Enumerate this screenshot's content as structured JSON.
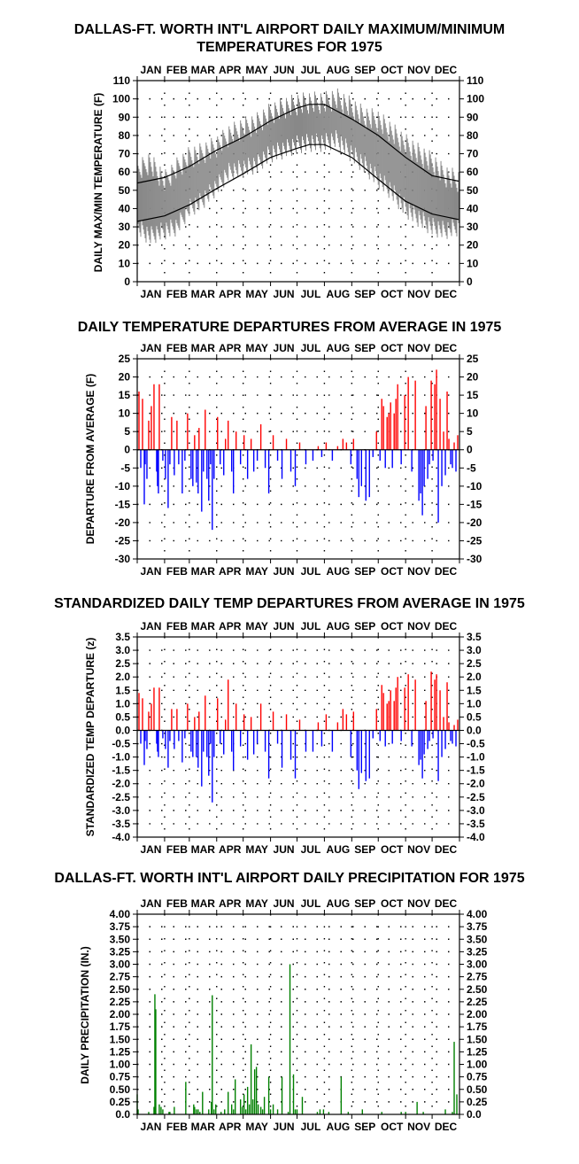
{
  "chart_data": [
    {
      "type": "line",
      "title_line1": "DALLAS-FT. WORTH INT'L AIRPORT DAILY MAXIMUM/MINIMUM",
      "title_line2": "TEMPERATURES FOR 1975",
      "ylabel": "DAILY MAX/MIN TEMPERATURE (F)",
      "xlabel": "",
      "months": [
        "JAN",
        "FEB",
        "MAR",
        "APR",
        "MAY",
        "JUN",
        "JUL",
        "AUG",
        "SEP",
        "OCT",
        "NOV",
        "DEC"
      ],
      "ylim": [
        0,
        110
      ],
      "yticks": [
        0,
        10,
        20,
        30,
        40,
        50,
        60,
        70,
        80,
        90,
        100,
        110
      ],
      "grid": true,
      "series": [
        {
          "role": "observed_range",
          "color": "#888888",
          "days": [
            1,
            15,
            32,
            46,
            60,
            74,
            91,
            105,
            121,
            135,
            152,
            166,
            182,
            196,
            213,
            227,
            244,
            258,
            274,
            288,
            305,
            319,
            335,
            349,
            365
          ],
          "max": [
            60,
            65,
            55,
            62,
            68,
            70,
            74,
            80,
            84,
            86,
            92,
            95,
            97,
            98,
            98,
            100,
            95,
            90,
            88,
            82,
            75,
            70,
            65,
            58,
            55
          ],
          "min": [
            30,
            25,
            28,
            30,
            40,
            44,
            52,
            60,
            62,
            64,
            70,
            72,
            75,
            76,
            76,
            78,
            70,
            64,
            56,
            50,
            40,
            35,
            30,
            28,
            30
          ]
        },
        {
          "role": "normal_max",
          "color": "#000000",
          "days": [
            1,
            32,
            60,
            91,
            121,
            152,
            182,
            196,
            213,
            244,
            274,
            305,
            335,
            365
          ],
          "values": [
            54,
            57,
            63,
            72,
            79,
            88,
            95,
            97,
            97,
            89,
            80,
            68,
            58,
            55
          ]
        },
        {
          "role": "normal_min",
          "color": "#000000",
          "days": [
            1,
            32,
            60,
            91,
            121,
            152,
            182,
            196,
            213,
            244,
            274,
            305,
            335,
            365
          ],
          "values": [
            33,
            36,
            42,
            51,
            59,
            68,
            73,
            75,
            75,
            68,
            56,
            44,
            37,
            34
          ]
        }
      ]
    },
    {
      "type": "bar",
      "title": "DAILY TEMPERATURE DEPARTURES FROM AVERAGE IN 1975",
      "ylabel": "DEPARTURE FROM AVERAGE (F)",
      "xlabel": "",
      "months": [
        "JAN",
        "FEB",
        "MAR",
        "APR",
        "MAY",
        "JUN",
        "JUL",
        "AUG",
        "SEP",
        "OCT",
        "NOV",
        "DEC"
      ],
      "ylim": [
        -30,
        25
      ],
      "yticks": [
        -30,
        -25,
        -20,
        -15,
        -10,
        -5,
        0,
        5,
        10,
        15,
        20,
        25
      ],
      "grid": true,
      "positive_color": "#ff0000",
      "negative_color": "#0000ff",
      "days": [
        3,
        5,
        7,
        9,
        10,
        12,
        14,
        17,
        20,
        23,
        24,
        25,
        26,
        30,
        33,
        36,
        38,
        40,
        43,
        46,
        48,
        52,
        55,
        58,
        62,
        64,
        66,
        68,
        70,
        71,
        74,
        76,
        78,
        80,
        82,
        84,
        86,
        88,
        92,
        95,
        99,
        101,
        104,
        108,
        110,
        113,
        118,
        122,
        126,
        130,
        133,
        137,
        141,
        146,
        150,
        155,
        160,
        165,
        170,
        175,
        180,
        185,
        192,
        200,
        206,
        210,
        215,
        222,
        228,
        234,
        238,
        243,
        246,
        250,
        252,
        255,
        260,
        264,
        268,
        272,
        276,
        278,
        280,
        282,
        284,
        286,
        288,
        290,
        292,
        294,
        296,
        300,
        304,
        308,
        312,
        316,
        320,
        322,
        324,
        326,
        328,
        330,
        332,
        334,
        336,
        338,
        340,
        342,
        344,
        346,
        348,
        350,
        352,
        354,
        356,
        358,
        360,
        362,
        364
      ],
      "values": [
        16,
        -5,
        14,
        -15,
        -4,
        -8,
        8,
        12,
        18,
        -6,
        -10,
        -12,
        18,
        -3,
        -8,
        -16,
        -4,
        9,
        -7,
        8,
        -4,
        -12,
        -3,
        10,
        -8,
        -10,
        4,
        -9,
        -12,
        6,
        -17,
        -6,
        11,
        -8,
        -14,
        -4,
        -22,
        -8,
        9,
        -4,
        -7,
        3,
        8,
        -6,
        -12,
        5,
        -4,
        4,
        -8,
        3,
        -6,
        -3,
        7,
        -5,
        -12,
        4,
        -3,
        -8,
        3,
        -6,
        -10,
        2,
        -4,
        -3,
        1,
        -2,
        2,
        -3,
        1,
        3,
        2,
        -4,
        3,
        -8,
        -13,
        -10,
        -14,
        -13,
        -2,
        5,
        -3,
        14,
        12,
        -5,
        9,
        10,
        13,
        -5,
        10,
        14,
        18,
        -4,
        15,
        20,
        -6,
        19,
        -14,
        -12,
        -18,
        -10,
        12,
        -8,
        -4,
        19,
        -3,
        18,
        22,
        -20,
        14,
        -10,
        5,
        -7,
        16,
        3,
        -4,
        -5,
        2,
        -6,
        4
      ]
    },
    {
      "type": "bar",
      "title": "STANDARDIZED DAILY TEMP DEPARTURES FROM AVERAGE IN 1975",
      "ylabel": "STANDARDIZED TEMP DEPARTURE (z)",
      "xlabel": "",
      "months": [
        "JAN",
        "FEB",
        "MAR",
        "APR",
        "MAY",
        "JUN",
        "JUL",
        "AUG",
        "SEP",
        "OCT",
        "NOV",
        "DEC"
      ],
      "ylim": [
        -4.0,
        3.5
      ],
      "yticks": [
        -4.0,
        -3.5,
        -3.0,
        -2.5,
        -2.0,
        -1.5,
        -1.0,
        -0.5,
        0.0,
        0.5,
        1.0,
        1.5,
        2.0,
        2.5,
        3.0,
        3.5
      ],
      "grid": true,
      "positive_color": "#ff0000",
      "negative_color": "#0000ff",
      "days": [
        3,
        5,
        7,
        9,
        10,
        12,
        14,
        17,
        20,
        23,
        24,
        25,
        26,
        30,
        33,
        36,
        38,
        40,
        43,
        46,
        48,
        52,
        55,
        58,
        62,
        64,
        66,
        68,
        70,
        71,
        74,
        76,
        78,
        80,
        82,
        84,
        86,
        88,
        92,
        95,
        99,
        101,
        104,
        108,
        110,
        113,
        118,
        122,
        126,
        130,
        133,
        137,
        141,
        146,
        150,
        155,
        160,
        165,
        170,
        175,
        180,
        185,
        192,
        200,
        206,
        210,
        215,
        222,
        228,
        234,
        238,
        243,
        246,
        250,
        252,
        255,
        260,
        264,
        268,
        272,
        276,
        278,
        280,
        282,
        284,
        286,
        288,
        290,
        292,
        294,
        296,
        300,
        304,
        308,
        312,
        316,
        320,
        322,
        324,
        326,
        328,
        330,
        332,
        334,
        336,
        338,
        340,
        342,
        344,
        346,
        348,
        350,
        352,
        354,
        356,
        358,
        360,
        362,
        364
      ],
      "values": [
        1.4,
        -0.5,
        1.2,
        -1.3,
        -0.4,
        -0.7,
        0.7,
        1.0,
        1.6,
        -0.5,
        -0.8,
        -1.0,
        1.6,
        -0.3,
        -0.7,
        -1.4,
        -0.4,
        0.8,
        -0.7,
        0.8,
        -0.4,
        -1.2,
        -0.3,
        1.0,
        -0.8,
        -1.0,
        0.5,
        -1.0,
        -1.4,
        0.7,
        -2.1,
        -0.8,
        1.3,
        -1.0,
        -1.7,
        -0.5,
        -2.7,
        -1.0,
        1.2,
        -0.5,
        -0.9,
        0.4,
        1.9,
        -0.8,
        -1.5,
        1.0,
        -0.6,
        0.6,
        -1.1,
        0.5,
        -0.9,
        -0.5,
        1.0,
        -0.8,
        -1.8,
        0.7,
        -0.5,
        -1.4,
        0.6,
        -1.1,
        -1.8,
        0.4,
        -0.8,
        -0.8,
        0.3,
        -0.6,
        0.6,
        -0.8,
        0.3,
        0.8,
        0.6,
        -1.0,
        0.7,
        -1.5,
        -2.2,
        -1.6,
        -1.9,
        -1.8,
        -0.3,
        0.8,
        -0.4,
        1.7,
        1.4,
        -0.6,
        1.0,
        1.1,
        1.5,
        -0.5,
        1.1,
        1.6,
        2.0,
        -0.4,
        1.6,
        2.1,
        -0.6,
        1.9,
        -1.3,
        -1.1,
        -1.8,
        -0.9,
        1.1,
        -0.7,
        -0.4,
        2.2,
        -0.3,
        1.9,
        2.1,
        -1.9,
        1.5,
        -1.0,
        0.5,
        -0.7,
        1.8,
        0.3,
        -0.4,
        -0.5,
        0.2,
        -0.6,
        0.4
      ]
    },
    {
      "type": "bar",
      "title": "DALLAS-FT. WORTH INT'L AIRPORT DAILY PRECIPITATION FOR 1975",
      "ylabel": "DAILY PRECIPITATION (IN.)",
      "xlabel": "",
      "months": [
        "JAN",
        "FEB",
        "MAR",
        "APR",
        "MAY",
        "JUN",
        "JUL",
        "AUG",
        "SEP",
        "OCT",
        "NOV",
        "DEC"
      ],
      "ylim": [
        0.0,
        4.0
      ],
      "yticks": [
        0.0,
        0.25,
        0.5,
        0.75,
        1.0,
        1.25,
        1.5,
        1.75,
        2.0,
        2.25,
        2.5,
        2.75,
        3.0,
        3.25,
        3.5,
        3.75,
        4.0
      ],
      "ytick_labels": [
        "0.0",
        "0.25",
        "0.50",
        "0.75",
        "1.00",
        "1.25",
        "1.50",
        "1.75",
        "2.00",
        "2.25",
        "2.50",
        "2.75",
        "3.00",
        "3.25",
        "3.50",
        "3.75",
        "4.00"
      ],
      "grid": true,
      "bar_color": "#008000",
      "days": [
        1,
        2,
        14,
        20,
        21,
        22,
        26,
        28,
        30,
        37,
        38,
        43,
        56,
        65,
        66,
        68,
        70,
        72,
        75,
        82,
        85,
        86,
        88,
        90,
        96,
        100,
        104,
        108,
        110,
        112,
        118,
        120,
        122,
        124,
        126,
        128,
        130,
        132,
        134,
        136,
        138,
        141,
        143,
        145,
        150,
        152,
        155,
        160,
        165,
        172,
        174,
        178,
        180,
        182,
        188,
        205,
        208,
        212,
        218,
        232,
        240,
        256,
        278,
        300,
        305,
        318,
        325,
        350,
        358,
        360,
        363
      ],
      "values": [
        0.4,
        0.1,
        0.05,
        0.15,
        2.4,
        2.1,
        0.2,
        0.15,
        0.1,
        0.05,
        0.05,
        0.15,
        0.65,
        0.2,
        0.15,
        0.1,
        0.1,
        0.05,
        0.45,
        0.1,
        0.25,
        2.38,
        0.1,
        0.2,
        0.05,
        0.1,
        0.45,
        0.2,
        0.1,
        0.7,
        0.3,
        0.15,
        0.4,
        0.1,
        0.55,
        0.2,
        1.4,
        0.3,
        0.9,
        0.95,
        0.2,
        0.15,
        0.1,
        0.35,
        0.75,
        0.1,
        0.2,
        0.1,
        0.75,
        0.05,
        3.0,
        0.8,
        0.1,
        0.1,
        0.35,
        0.05,
        0.1,
        0.1,
        0.05,
        0.75,
        0.05,
        0.1,
        0.05,
        0.05,
        0.05,
        0.25,
        0.05,
        0.1,
        0.05,
        1.45,
        0.4
      ]
    }
  ]
}
